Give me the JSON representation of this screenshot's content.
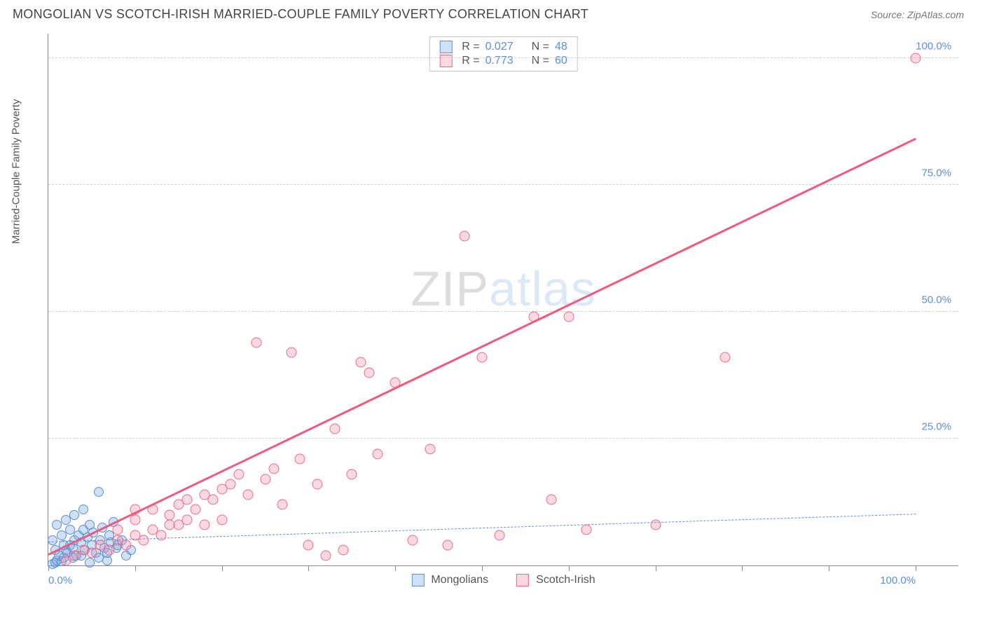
{
  "header": {
    "title": "MONGOLIAN VS SCOTCH-IRISH MARRIED-COUPLE FAMILY POVERTY CORRELATION CHART",
    "source_label": "Source:",
    "source_name": "ZipAtlas.com"
  },
  "chart": {
    "type": "scatter",
    "y_axis_label": "Married-Couple Family Poverty",
    "xlim": [
      0,
      105
    ],
    "ylim": [
      0,
      105
    ],
    "x_ticks_minor": [
      0,
      10,
      20,
      30,
      40,
      50,
      60,
      70,
      80,
      90,
      100
    ],
    "y_gridlines": [
      25,
      50,
      75,
      100
    ],
    "y_tick_labels": [
      {
        "pos": 25,
        "text": "25.0%"
      },
      {
        "pos": 50,
        "text": "50.0%"
      },
      {
        "pos": 75,
        "text": "75.0%"
      },
      {
        "pos": 100,
        "text": "100.0%"
      }
    ],
    "x_tick_labels": [
      {
        "pos": 0,
        "text": "0.0%"
      },
      {
        "pos": 100,
        "text": "100.0%"
      }
    ],
    "background_color": "#ffffff",
    "grid_color": "#d0d0d0",
    "series": [
      {
        "name": "Mongolians",
        "marker_fill": "rgba(120,170,230,0.35)",
        "marker_stroke": "#5b8fd6",
        "marker_size": 14,
        "R": "0.027",
        "N": "48",
        "trend": {
          "x1": 0,
          "y1": 4.5,
          "x2": 100,
          "y2": 10,
          "color": "#5b8fd6",
          "dash": true,
          "width": 1.5
        },
        "points": [
          [
            0.5,
            0.3
          ],
          [
            0.8,
            0.5
          ],
          [
            1.0,
            1.0
          ],
          [
            1.2,
            2.0
          ],
          [
            1.5,
            0.8
          ],
          [
            1.8,
            1.5
          ],
          [
            2.0,
            3.0
          ],
          [
            2.2,
            2.5
          ],
          [
            2.5,
            4.0
          ],
          [
            2.8,
            3.5
          ],
          [
            3.0,
            5.0
          ],
          [
            3.2,
            2.0
          ],
          [
            3.5,
            6.0
          ],
          [
            3.8,
            4.5
          ],
          [
            4.0,
            7.0
          ],
          [
            4.2,
            3.0
          ],
          [
            4.5,
            5.5
          ],
          [
            4.8,
            8.0
          ],
          [
            5.0,
            4.0
          ],
          [
            5.2,
            6.5
          ],
          [
            5.5,
            2.5
          ],
          [
            5.8,
            14.5
          ],
          [
            6.0,
            5.0
          ],
          [
            6.2,
            7.5
          ],
          [
            6.5,
            3.5
          ],
          [
            6.8,
            1.0
          ],
          [
            7.0,
            6.0
          ],
          [
            7.2,
            4.5
          ],
          [
            7.5,
            8.5
          ],
          [
            1.0,
            8.0
          ],
          [
            2.0,
            9.0
          ],
          [
            3.0,
            10.0
          ],
          [
            4.0,
            11.0
          ],
          [
            0.5,
            5.0
          ],
          [
            1.5,
            6.0
          ],
          [
            2.5,
            7.0
          ],
          [
            0.8,
            3.0
          ],
          [
            1.8,
            4.0
          ],
          [
            2.8,
            1.5
          ],
          [
            3.8,
            2.0
          ],
          [
            4.8,
            0.5
          ],
          [
            5.8,
            1.5
          ],
          [
            6.8,
            2.5
          ],
          [
            7.8,
            3.5
          ],
          [
            8.0,
            4.0
          ],
          [
            8.5,
            5.0
          ],
          [
            9.0,
            2.0
          ],
          [
            9.5,
            3.0
          ]
        ]
      },
      {
        "name": "Scotch-Irish",
        "marker_fill": "rgba(240,140,160,0.32)",
        "marker_stroke": "#e86b8a",
        "marker_size": 15,
        "R": "0.773",
        "N": "60",
        "trend": {
          "x1": 0,
          "y1": 2,
          "x2": 100,
          "y2": 84,
          "color": "#ee5b7e",
          "dash": false,
          "width": 2.5
        },
        "points": [
          [
            2,
            1
          ],
          [
            3,
            2
          ],
          [
            4,
            3
          ],
          [
            5,
            2.5
          ],
          [
            6,
            4
          ],
          [
            7,
            3
          ],
          [
            8,
            5
          ],
          [
            9,
            4
          ],
          [
            10,
            6
          ],
          [
            11,
            5
          ],
          [
            12,
            7
          ],
          [
            13,
            6
          ],
          [
            14,
            8
          ],
          [
            15,
            12
          ],
          [
            16,
            9
          ],
          [
            17,
            11
          ],
          [
            18,
            14
          ],
          [
            19,
            13
          ],
          [
            10,
            9
          ],
          [
            12,
            11
          ],
          [
            14,
            10
          ],
          [
            16,
            13
          ],
          [
            18,
            8
          ],
          [
            20,
            15
          ],
          [
            21,
            16
          ],
          [
            22,
            18
          ],
          [
            23,
            14
          ],
          [
            24,
            44
          ],
          [
            25,
            17
          ],
          [
            26,
            19
          ],
          [
            27,
            12
          ],
          [
            28,
            42
          ],
          [
            29,
            21
          ],
          [
            30,
            4
          ],
          [
            31,
            16
          ],
          [
            32,
            2
          ],
          [
            33,
            27
          ],
          [
            34,
            3
          ],
          [
            35,
            18
          ],
          [
            36,
            40
          ],
          [
            37,
            38
          ],
          [
            38,
            22
          ],
          [
            40,
            36
          ],
          [
            42,
            5
          ],
          [
            44,
            23
          ],
          [
            46,
            4
          ],
          [
            48,
            65
          ],
          [
            50,
            41
          ],
          [
            52,
            6
          ],
          [
            56,
            49
          ],
          [
            58,
            13
          ],
          [
            60,
            49
          ],
          [
            62,
            7
          ],
          [
            70,
            8
          ],
          [
            78,
            41
          ],
          [
            100,
            100
          ],
          [
            8,
            7
          ],
          [
            10,
            11
          ],
          [
            15,
            8
          ],
          [
            20,
            9
          ]
        ]
      }
    ],
    "watermark": {
      "part1": "ZIP",
      "part2": "atlas"
    }
  },
  "legend_bottom_items": [
    "Mongolians",
    "Scotch-Irish"
  ]
}
